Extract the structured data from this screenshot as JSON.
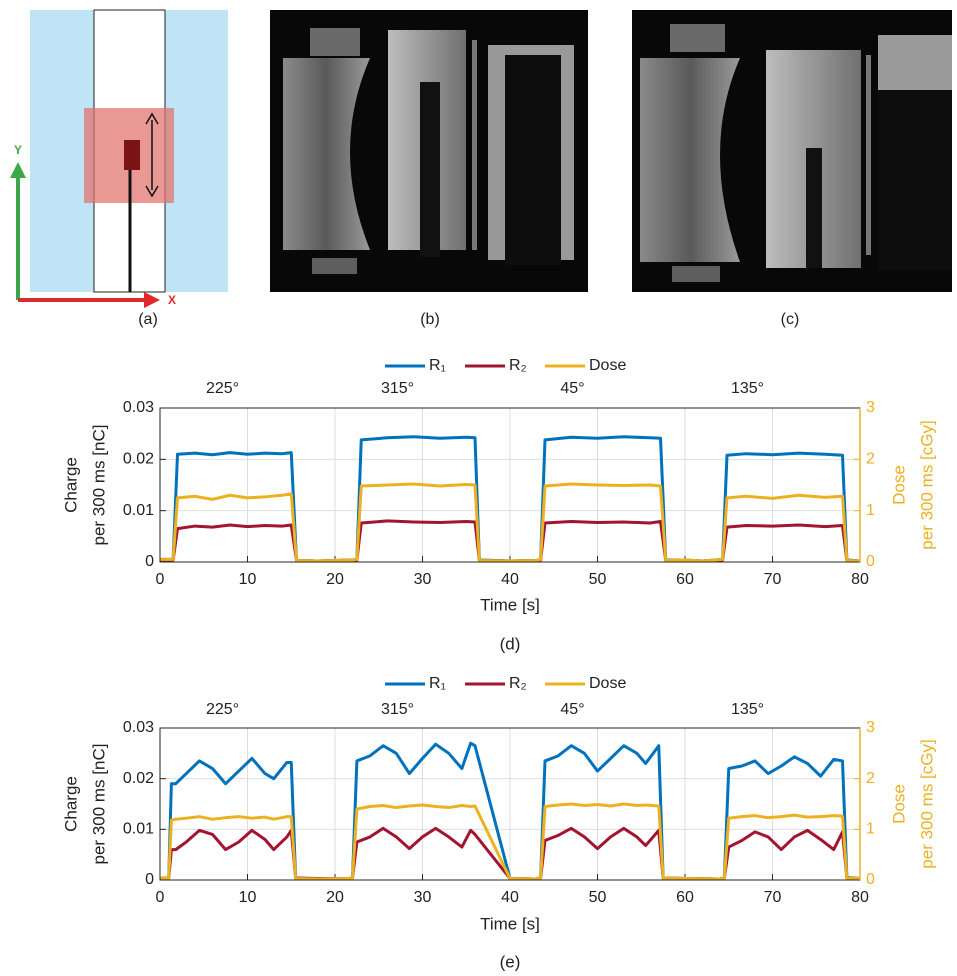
{
  "panel_labels": [
    "(a)",
    "(b)",
    "(c)"
  ],
  "diagram": {
    "x_label": "X",
    "y_label": "Y"
  },
  "chart_data": [
    {
      "type": "line",
      "caption": "(d)",
      "xlabel": "Time [s]",
      "ylabel": [
        "Charge",
        "per 300 ms [nC]"
      ],
      "y2label": [
        "Dose",
        "per 300 ms [cGy]"
      ],
      "annotations": [
        "225°",
        "315°",
        "45°",
        "135°"
      ],
      "xlim": [
        0,
        80
      ],
      "xticks": [
        0,
        10,
        20,
        30,
        40,
        50,
        60,
        70,
        80
      ],
      "ylim": [
        0,
        0.03
      ],
      "yticks": [
        0,
        0.01,
        0.02,
        0.03
      ],
      "y2lim": [
        0,
        3
      ],
      "y2ticks": [
        0,
        1,
        2,
        3
      ],
      "y2color": "#edb120",
      "grid": true,
      "x": [
        0,
        1.5,
        2,
        4,
        6,
        8,
        10,
        12,
        14,
        15,
        15.6,
        18,
        20,
        22,
        22.5,
        23,
        26,
        29,
        32,
        35,
        36,
        36.5,
        40,
        43,
        43.5,
        44,
        47,
        50,
        53,
        56,
        57.2,
        57.8,
        60,
        62,
        64.3,
        64.8,
        67,
        70,
        73,
        76,
        78,
        78.5,
        80
      ],
      "series": [
        {
          "name": "R₁",
          "color": "#0072bd",
          "values": [
            0.0005,
            0.0005,
            0.021,
            0.0212,
            0.0209,
            0.0213,
            0.021,
            0.0212,
            0.0211,
            0.0213,
            0.0003,
            0.0002,
            0.0003,
            0.0004,
            0.0005,
            0.0238,
            0.0242,
            0.0244,
            0.0241,
            0.0243,
            0.0242,
            0.0004,
            0.0002,
            0.0003,
            0.0005,
            0.0238,
            0.0243,
            0.0241,
            0.0244,
            0.0242,
            0.0241,
            0.0004,
            0.0003,
            0.0002,
            0.0005,
            0.0208,
            0.0211,
            0.0209,
            0.0212,
            0.021,
            0.0208,
            0.0004,
            0.0002
          ]
        },
        {
          "name": "R₂",
          "color": "#a2142f",
          "values": [
            0.0004,
            0.0004,
            0.0065,
            0.007,
            0.0068,
            0.0072,
            0.0069,
            0.0071,
            0.007,
            0.0072,
            0.0003,
            0.0002,
            0.0003,
            0.0004,
            0.0004,
            0.0076,
            0.008,
            0.0078,
            0.0077,
            0.0079,
            0.0078,
            0.0003,
            0.0002,
            0.0003,
            0.0004,
            0.0076,
            0.0079,
            0.0077,
            0.0078,
            0.0076,
            0.0079,
            0.0003,
            0.0004,
            0.0002,
            0.0004,
            0.0068,
            0.0071,
            0.007,
            0.0072,
            0.0069,
            0.0071,
            0.0003,
            0.0002
          ]
        },
        {
          "name": "Dose",
          "color": "#edb120",
          "axis": "y2",
          "values": [
            0.05,
            0.05,
            1.25,
            1.28,
            1.22,
            1.3,
            1.25,
            1.27,
            1.3,
            1.33,
            0.03,
            0.02,
            0.03,
            0.04,
            0.05,
            1.48,
            1.5,
            1.52,
            1.48,
            1.51,
            1.5,
            0.03,
            0.02,
            0.03,
            0.05,
            1.48,
            1.52,
            1.5,
            1.49,
            1.5,
            1.48,
            0.03,
            0.04,
            0.02,
            0.05,
            1.25,
            1.28,
            1.24,
            1.3,
            1.26,
            1.28,
            0.03,
            0.02
          ]
        }
      ]
    },
    {
      "type": "line",
      "caption": "(e)",
      "xlabel": "Time [s]",
      "ylabel": [
        "Charge",
        "per 300 ms [nC]"
      ],
      "y2label": [
        "Dose",
        "per 300 ms [cGy]"
      ],
      "annotations": [
        "225°",
        "315°",
        "45°",
        "135°"
      ],
      "xlim": [
        0,
        80
      ],
      "xticks": [
        0,
        10,
        20,
        30,
        40,
        50,
        60,
        70,
        80
      ],
      "ylim": [
        0,
        0.03
      ],
      "yticks": [
        0,
        0.01,
        0.02,
        0.03
      ],
      "y2lim": [
        0,
        3
      ],
      "y2ticks": [
        0,
        1,
        2,
        3
      ],
      "y2color": "#edb120",
      "grid": true,
      "x": [
        0,
        1,
        1.3,
        1.8,
        3,
        4.5,
        6,
        7.5,
        9,
        10.5,
        12,
        13,
        14.5,
        15,
        15.5,
        18,
        21.5,
        22,
        22.5,
        24,
        25.5,
        27,
        28.5,
        30,
        31.5,
        33,
        34.5,
        35.5,
        36,
        40,
        43,
        43.5,
        44,
        45.5,
        47,
        48.5,
        50,
        51.5,
        53,
        54.5,
        55.5,
        57,
        57.5,
        60,
        64,
        64.5,
        65,
        66.5,
        68,
        69.5,
        71,
        72.5,
        74,
        75.5,
        77,
        78,
        78.5,
        80
      ],
      "series": [
        {
          "name": "R₁",
          "color": "#0072bd",
          "values": [
            0.0003,
            0.0004,
            0.019,
            0.019,
            0.021,
            0.0235,
            0.022,
            0.019,
            0.0215,
            0.024,
            0.021,
            0.02,
            0.0232,
            0.0232,
            0.0004,
            0.0002,
            0.0003,
            0.0004,
            0.0235,
            0.0245,
            0.0265,
            0.025,
            0.021,
            0.024,
            0.0268,
            0.025,
            0.022,
            0.027,
            0.0265,
            0.0003,
            0.0002,
            0.0004,
            0.0235,
            0.0245,
            0.0265,
            0.025,
            0.0215,
            0.024,
            0.0265,
            0.025,
            0.023,
            0.0265,
            0.0004,
            0.0003,
            0.0002,
            0.0004,
            0.022,
            0.0225,
            0.0235,
            0.021,
            0.0225,
            0.0243,
            0.023,
            0.0205,
            0.0238,
            0.0235,
            0.0005,
            0.0003
          ]
        },
        {
          "name": "R₂",
          "color": "#a2142f",
          "values": [
            0.0003,
            0.0004,
            0.006,
            0.006,
            0.0075,
            0.0098,
            0.009,
            0.006,
            0.0075,
            0.0098,
            0.008,
            0.006,
            0.0085,
            0.0098,
            0.0004,
            0.0003,
            0.0002,
            0.0004,
            0.0075,
            0.0085,
            0.0102,
            0.0085,
            0.0062,
            0.0085,
            0.0102,
            0.0085,
            0.0065,
            0.0098,
            0.009,
            0.0003,
            0.0002,
            0.0004,
            0.0078,
            0.0088,
            0.0102,
            0.0085,
            0.0062,
            0.0085,
            0.0102,
            0.0085,
            0.0068,
            0.0098,
            0.0004,
            0.0003,
            0.0002,
            0.0004,
            0.0065,
            0.0078,
            0.0095,
            0.0085,
            0.006,
            0.0085,
            0.0098,
            0.008,
            0.006,
            0.0095,
            0.0004,
            0.0003
          ]
        },
        {
          "name": "Dose",
          "color": "#edb120",
          "axis": "y2",
          "values": [
            0.03,
            0.04,
            1.18,
            1.2,
            1.22,
            1.25,
            1.2,
            1.23,
            1.25,
            1.22,
            1.24,
            1.2,
            1.25,
            1.25,
            0.03,
            0.02,
            0.03,
            0.04,
            1.4,
            1.45,
            1.47,
            1.43,
            1.46,
            1.48,
            1.45,
            1.43,
            1.47,
            1.45,
            1.46,
            0.03,
            0.02,
            0.04,
            1.45,
            1.48,
            1.5,
            1.47,
            1.49,
            1.46,
            1.5,
            1.47,
            1.48,
            1.46,
            0.04,
            0.03,
            0.02,
            0.04,
            1.22,
            1.25,
            1.27,
            1.23,
            1.25,
            1.28,
            1.24,
            1.25,
            1.27,
            1.26,
            0.04,
            0.03
          ]
        }
      ]
    }
  ]
}
